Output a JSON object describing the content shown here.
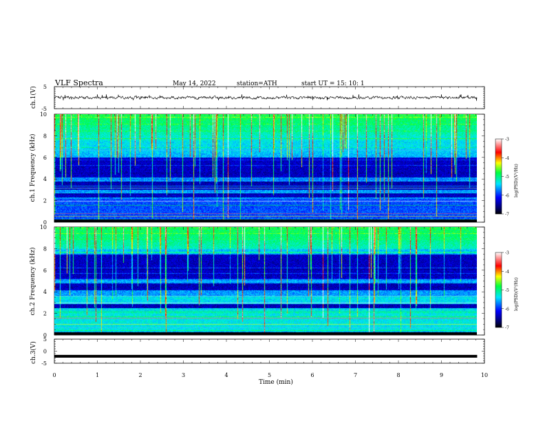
{
  "header": {
    "title": "VLF  Spectra",
    "date": "May 14, 2022",
    "station": "station=ATH",
    "start": "start  UT  =   15: 10: 1"
  },
  "chart_data": [
    {
      "type": "line",
      "panel": "ch1-waveform",
      "ylabel": "ch.1(V)",
      "ylim": [
        -5,
        5
      ],
      "yticks": [
        5,
        -5
      ],
      "xlim": [
        0,
        10
      ],
      "mean_level": 0,
      "visible_range": [
        -1.5,
        1.5
      ],
      "color": "#000000"
    },
    {
      "type": "heatmap",
      "panel": "ch1-spectrogram",
      "ylabel": "ch.1 Frequency (kHz)",
      "xlim": [
        0,
        10
      ],
      "ylim": [
        0,
        10
      ],
      "yticks": [
        0,
        2,
        4,
        6,
        8,
        10
      ],
      "data_end_min": 9.83,
      "quiet_band_khz": [
        4.2,
        6.0
      ],
      "dark_bands_khz": [
        [
          3.0,
          3.8
        ],
        [
          2.3,
          2.7
        ],
        [
          0.05,
          0.3
        ]
      ],
      "colorbar": {
        "label": "log(PSD)(V²/Hz)",
        "range": [
          -7,
          -3
        ],
        "ticks": [
          -3,
          -4,
          -5,
          -6,
          -7
        ]
      }
    },
    {
      "type": "heatmap",
      "panel": "ch2-spectrogram",
      "ylabel": "ch.2 Frequency (kHz)",
      "xlim": [
        0,
        10
      ],
      "ylim": [
        0,
        10
      ],
      "yticks": [
        0,
        2,
        4,
        6,
        8,
        10
      ],
      "data_end_min": 9.83,
      "quiet_band_khz": [
        5.2,
        7.5
      ],
      "dark_bands_khz": [
        [
          4.2,
          4.8
        ],
        [
          2.5,
          2.9
        ],
        [
          0.05,
          0.3
        ]
      ],
      "colorbar": {
        "label": "log(PSD)(V²/Hz)",
        "range": [
          -7,
          -3
        ],
        "ticks": [
          -3,
          -4,
          -5,
          -6,
          -7
        ]
      }
    },
    {
      "type": "line",
      "panel": "ch3-waveform",
      "ylabel": "ch.3(V)",
      "ylim": [
        -5,
        5
      ],
      "yticks": [
        5,
        0,
        -5
      ],
      "xlim": [
        0,
        10
      ],
      "mean_level": -2.1,
      "visible_range": [
        -2.4,
        -1.8
      ],
      "color": "#000000"
    }
  ],
  "xaxis": {
    "label": "Time  (min)",
    "ticks": [
      0,
      1,
      2,
      3,
      4,
      5,
      6,
      7,
      8,
      9,
      10
    ]
  },
  "colormap": [
    "#000000",
    "#0000ff",
    "#00ffff",
    "#00ff00",
    "#ffff00",
    "#ff0000",
    "#ffffff"
  ]
}
